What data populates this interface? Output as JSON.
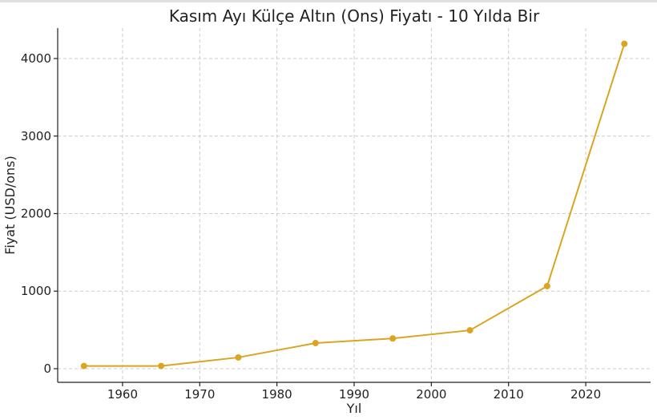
{
  "chart_data": {
    "type": "line",
    "title": "Kasım Ayı Külçe Altın (Ons) Fiyatı - 10 Yılda Bir",
    "x_label": "Yıl",
    "y_label": "Fiyat (USD/ons)",
    "x": [
      1955,
      1965,
      1975,
      1985,
      1995,
      2005,
      2015,
      2025
    ],
    "series": [
      {
        "name": "Fiyat",
        "color": "#daa520",
        "values": [
          35,
          35,
          145,
          330,
          390,
          495,
          1065,
          4190
        ]
      }
    ],
    "xlim": [
      1951.6,
      2028.4
    ],
    "xticks": [
      1960,
      1970,
      1980,
      1990,
      2000,
      2010,
      2020
    ],
    "ylim": [
      -176,
      4393
    ],
    "yticks": [
      0,
      1000,
      2000,
      3000,
      4000
    ],
    "grid": true
  }
}
